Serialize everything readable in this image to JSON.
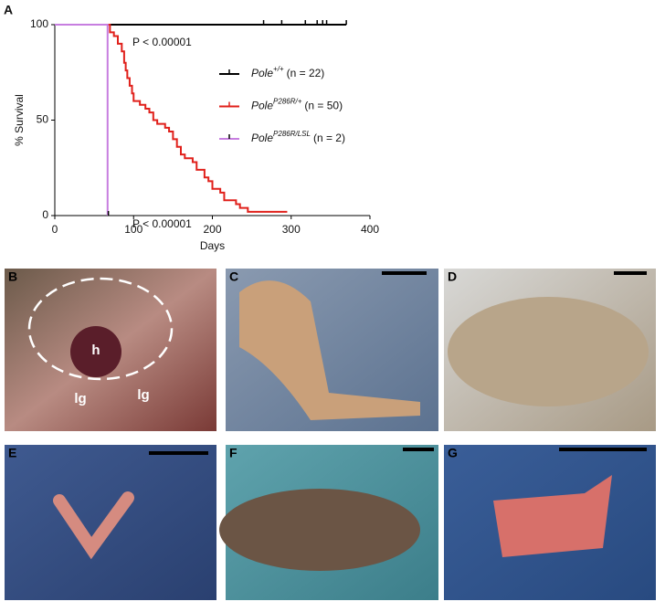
{
  "chart_data": {
    "type": "line",
    "panel_label": "A",
    "xlabel": "Days",
    "ylabel": "% Survival",
    "xlim": [
      0,
      400
    ],
    "xticks": [
      0,
      100,
      200,
      300,
      400
    ],
    "ylim": [
      0,
      100
    ],
    "yticks": [
      0,
      50,
      100
    ],
    "step": true,
    "annotations": [
      "P < 0.00001",
      "P < 0.00001"
    ],
    "series": [
      {
        "name": "Pole",
        "superscript": "+/+",
        "suffix": "(n = 22)",
        "color": "#000000",
        "x": [
          0,
          370
        ],
        "values": [
          100,
          100
        ],
        "censored_x": [
          265,
          288,
          318,
          333,
          340,
          345,
          370
        ],
        "censored_values": [
          100,
          100,
          100,
          100,
          100,
          100,
          100
        ]
      },
      {
        "name": "Pole",
        "superscript": "P286R/+",
        "suffix": "(n = 50)",
        "color": "#e0201b",
        "x": [
          0,
          70,
          75,
          80,
          85,
          88,
          90,
          92,
          95,
          98,
          100,
          108,
          115,
          120,
          125,
          130,
          140,
          145,
          150,
          155,
          160,
          165,
          175,
          180,
          190,
          195,
          200,
          210,
          215,
          230,
          235,
          245,
          295
        ],
        "values": [
          100,
          96,
          94,
          90,
          86,
          80,
          76,
          72,
          68,
          64,
          60,
          58,
          56,
          54,
          50,
          48,
          46,
          44,
          40,
          36,
          32,
          30,
          28,
          24,
          20,
          18,
          14,
          12,
          8,
          6,
          4,
          2,
          2
        ],
        "censored_x": [],
        "censored_values": []
      },
      {
        "name": "Pole",
        "superscript": "P286R/LSL",
        "suffix": "(n = 2)",
        "color": "#c77ee0",
        "x": [
          0,
          67,
          67
        ],
        "values": [
          100,
          100,
          0
        ],
        "censored_x": [
          68
        ],
        "censored_values": [
          0
        ]
      }
    ]
  },
  "panels": [
    {
      "label": "B",
      "annotations": [
        "h",
        "lg",
        "lg"
      ]
    },
    {
      "label": "C"
    },
    {
      "label": "D"
    },
    {
      "label": "E"
    },
    {
      "label": "F"
    },
    {
      "label": "G"
    }
  ]
}
